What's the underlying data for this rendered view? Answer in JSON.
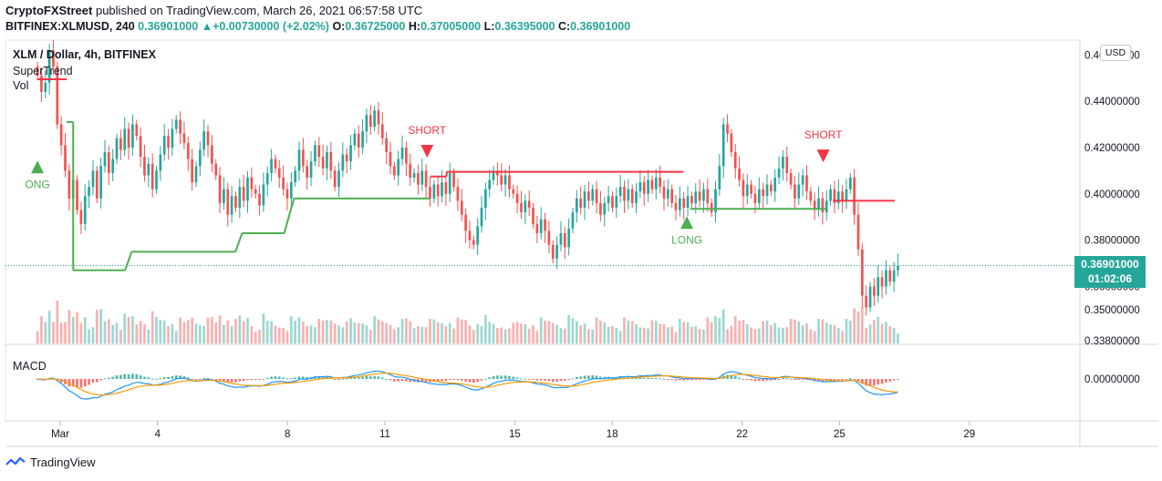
{
  "header": {
    "publisher_line": "CryptoFXStreet published on TradingView.com, March 26, 2021 06:57:58 UTC",
    "publisher_name": "CryptoFXStreet",
    "publisher_rest": " published on TradingView.com, March 26, 2021 06:57:58 UTC",
    "symbol": "BITFINEX:XLMUSD, 240",
    "last": "0.36901000",
    "change_arrow": "▲",
    "change": "+0.00730000 (+2.02%)",
    "o_label": "O:",
    "o": "0.36725000",
    "h_label": "H:",
    "h": "0.37005000",
    "l_label": "L:",
    "l": "0.36395000",
    "c_label": "C:",
    "c": "0.36901000"
  },
  "legend": {
    "title": "XLM / Dollar, 4h, BITFINEX",
    "supertrend": "SuperTrend",
    "vol": "Vol",
    "macd": "MACD"
  },
  "currency_button": "USD",
  "price_box": {
    "price": "0.36901000",
    "countdown": "01:02:06"
  },
  "brand": "TradingView",
  "colors": {
    "up": "#26a69a",
    "down": "#ef5350",
    "supertrend_up": "#4caf50",
    "supertrend_down": "#f23645",
    "macd_line": "#2196f3",
    "signal_line": "#ff9800"
  },
  "chart_data": {
    "type": "candlestick",
    "price_axis_ticks": [
      "0.46000000",
      "0.44000000",
      "0.42000000",
      "0.40000000",
      "0.38000000",
      "0.36000000",
      "0.35000000",
      "0.33800000"
    ],
    "price_axis_values": [
      0.46,
      0.44,
      0.42,
      0.4,
      0.38,
      0.36
    ],
    "volume_axis_ticks": [
      "0.35000000",
      "0.33800000"
    ],
    "macd_axis_ticks": [
      "0.00000000"
    ],
    "x_ticks": [
      "Mar",
      "4",
      "8",
      "11",
      "15",
      "18",
      "22",
      "25",
      "29"
    ],
    "x_tick_days": [
      1,
      4,
      8,
      11,
      15,
      18,
      22,
      25,
      29
    ],
    "start_day": 0.3,
    "ylim": [
      0.335,
      0.466
    ],
    "last_price": 0.36901,
    "closes": [
      0.451,
      0.444,
      0.448,
      0.462,
      0.455,
      0.43,
      0.421,
      0.41,
      0.398,
      0.406,
      0.393,
      0.387,
      0.399,
      0.403,
      0.41,
      0.398,
      0.412,
      0.418,
      0.409,
      0.415,
      0.424,
      0.419,
      0.428,
      0.42,
      0.43,
      0.425,
      0.416,
      0.408,
      0.413,
      0.402,
      0.41,
      0.417,
      0.425,
      0.42,
      0.428,
      0.432,
      0.426,
      0.422,
      0.415,
      0.405,
      0.412,
      0.419,
      0.427,
      0.421,
      0.413,
      0.408,
      0.396,
      0.402,
      0.391,
      0.399,
      0.394,
      0.403,
      0.397,
      0.407,
      0.402,
      0.4,
      0.395,
      0.404,
      0.409,
      0.415,
      0.411,
      0.407,
      0.402,
      0.398,
      0.405,
      0.41,
      0.419,
      0.412,
      0.407,
      0.414,
      0.421,
      0.416,
      0.411,
      0.418,
      0.41,
      0.403,
      0.41,
      0.417,
      0.414,
      0.421,
      0.426,
      0.42,
      0.427,
      0.434,
      0.429,
      0.436,
      0.43,
      0.424,
      0.418,
      0.412,
      0.408,
      0.415,
      0.42,
      0.413,
      0.407,
      0.409,
      0.404,
      0.41,
      0.403,
      0.398,
      0.404,
      0.399,
      0.405,
      0.4,
      0.409,
      0.403,
      0.397,
      0.391,
      0.384,
      0.38,
      0.378,
      0.386,
      0.394,
      0.402,
      0.406,
      0.41,
      0.408,
      0.404,
      0.408,
      0.402,
      0.4,
      0.396,
      0.392,
      0.397,
      0.394,
      0.387,
      0.383,
      0.389,
      0.384,
      0.378,
      0.372,
      0.378,
      0.383,
      0.377,
      0.385,
      0.392,
      0.398,
      0.394,
      0.401,
      0.397,
      0.402,
      0.396,
      0.391,
      0.396,
      0.399,
      0.394,
      0.399,
      0.403,
      0.397,
      0.402,
      0.396,
      0.401,
      0.405,
      0.4,
      0.406,
      0.402,
      0.407,
      0.403,
      0.398,
      0.402,
      0.396,
      0.393,
      0.398,
      0.394,
      0.399,
      0.396,
      0.401,
      0.397,
      0.402,
      0.396,
      0.392,
      0.402,
      0.412,
      0.43,
      0.426,
      0.418,
      0.411,
      0.406,
      0.399,
      0.404,
      0.4,
      0.396,
      0.402,
      0.399,
      0.404,
      0.401,
      0.407,
      0.411,
      0.416,
      0.409,
      0.404,
      0.398,
      0.404,
      0.408,
      0.401,
      0.397,
      0.393,
      0.398,
      0.392,
      0.397,
      0.402,
      0.396,
      0.401,
      0.397,
      0.402,
      0.407,
      0.391,
      0.376,
      0.356,
      0.351,
      0.36,
      0.356,
      0.364,
      0.36,
      0.367,
      0.362,
      0.367,
      0.369
    ],
    "supertrend": [
      {
        "from": 0.3,
        "to": 1.2,
        "value": 0.4495,
        "dir": "down"
      },
      {
        "from": 1.2,
        "to": 1.4,
        "value": 0.431,
        "dir": "up"
      },
      {
        "from": 1.4,
        "to": 1.8,
        "value": 0.367,
        "dir": "up"
      },
      {
        "from": 1.8,
        "to": 3.0,
        "value": 0.367,
        "dir": "up"
      },
      {
        "from": 3.2,
        "to": 6.4,
        "value": 0.375,
        "dir": "up"
      },
      {
        "from": 6.6,
        "to": 7.9,
        "value": 0.383,
        "dir": "up"
      },
      {
        "from": 8.2,
        "to": 12.4,
        "value": 0.398,
        "dir": "up"
      },
      {
        "from": 12.4,
        "to": 12.9,
        "value": 0.4075,
        "dir": "down"
      },
      {
        "from": 12.9,
        "to": 20.2,
        "value": 0.4095,
        "dir": "down"
      },
      {
        "from": 20.4,
        "to": 24.6,
        "value": 0.3935,
        "dir": "up"
      },
      {
        "from": 24.8,
        "to": 26.7,
        "value": 0.397,
        "dir": "down"
      }
    ],
    "signals": [
      {
        "label": "ONG",
        "day": 0.3,
        "price": 0.412,
        "type": "long"
      },
      {
        "label": "SHORT",
        "day": 12.3,
        "price": 0.418,
        "type": "short"
      },
      {
        "label": "LONG",
        "day": 20.3,
        "price": 0.388,
        "type": "long"
      },
      {
        "label": "SHORT",
        "day": 24.5,
        "price": 0.416,
        "type": "short"
      }
    ]
  }
}
